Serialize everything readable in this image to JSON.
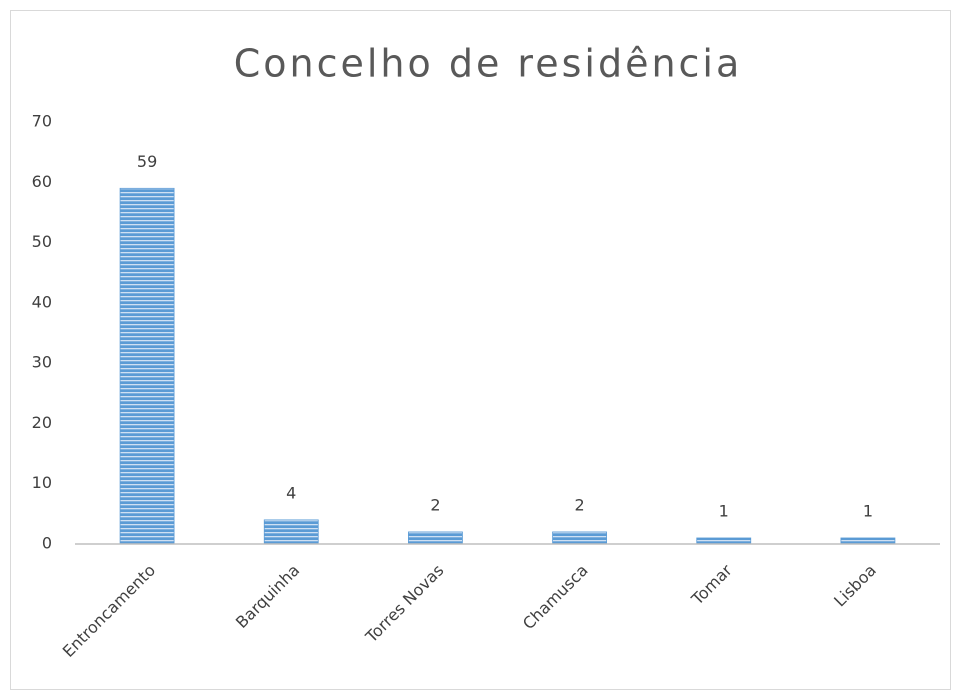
{
  "chart_data": {
    "type": "bar",
    "title": "Concelho de residência",
    "categories": [
      "Entroncamento",
      "Barquinha",
      "Torres Novas",
      "Chamusca",
      "Tomar",
      "Lisboa"
    ],
    "values": [
      59,
      4,
      2,
      2,
      1,
      1
    ],
    "color": "#5b9bd5",
    "ylim": [
      0,
      70
    ],
    "yticks": [
      0,
      10,
      20,
      30,
      40,
      50,
      60,
      70
    ],
    "grid": false
  }
}
